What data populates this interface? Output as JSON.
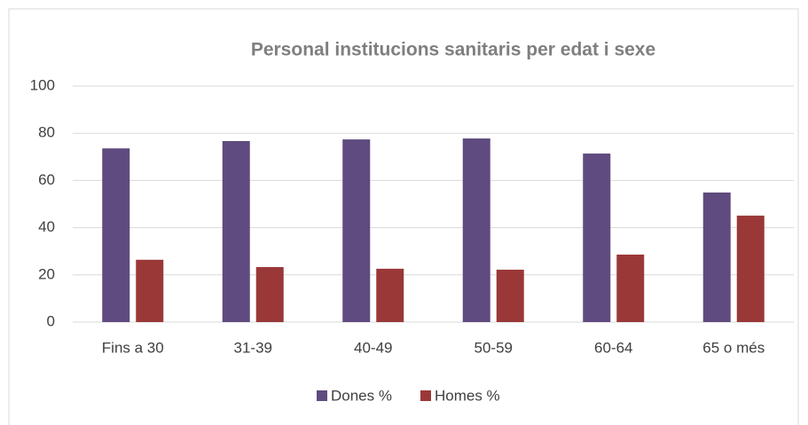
{
  "chart_data": {
    "type": "bar",
    "title": "Personal institucions sanitaris per edat i sexe",
    "categories": [
      "Fins a 30",
      "31-39",
      "40-49",
      "50-59",
      "60-64",
      "65 o més"
    ],
    "series": [
      {
        "name": "Dones %",
        "color": "#5f4b7f",
        "values": [
          73.6,
          76.7,
          77.4,
          77.8,
          71.4,
          54.9
        ]
      },
      {
        "name": "Homes %",
        "color": "#9a3838",
        "values": [
          26.4,
          23.3,
          22.6,
          22.2,
          28.6,
          45.1
        ]
      }
    ],
    "ylim": [
      0,
      100
    ],
    "yticks": [
      0,
      20,
      40,
      60,
      80,
      100
    ],
    "grid": true,
    "legend": "bottom"
  }
}
